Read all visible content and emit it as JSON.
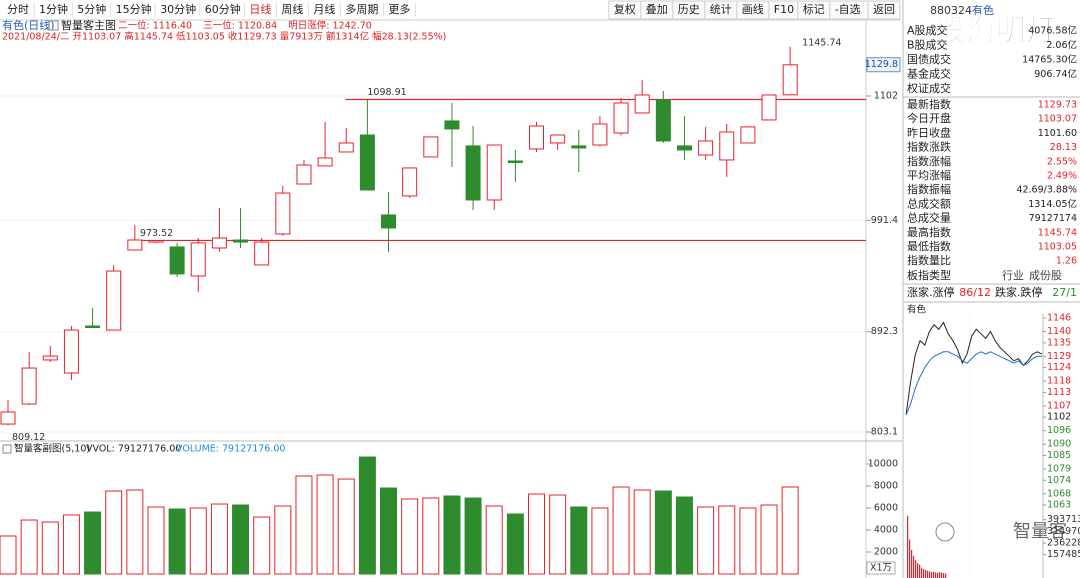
{
  "toolbar": {
    "periods": [
      "分时",
      "1分钟",
      "5分钟",
      "15分钟",
      "30分钟",
      "60分钟",
      "日线",
      "周线",
      "月线",
      "多周期",
      "更多"
    ],
    "tools": [
      "复权",
      "叠加",
      "历史",
      "统计",
      "画线",
      "F10",
      "标记",
      "-自选",
      "返回"
    ]
  },
  "header": {
    "title": "有色(日线)",
    "indicator": "智量客主图",
    "levels": [
      "二一位: 1116.40",
      "三一位: 1120.84",
      "明日涨停: 1242.70"
    ],
    "quote": "2021/08/24/二 开1103.07 高1145.74 低1103.05 收1129.73 量7913万 额1314亿 幅28.13(2.55%)"
  },
  "panel": {
    "code": "880324",
    "name": "有色",
    "watermark": "股海明灯",
    "rows": [
      [
        "A股成交",
        "4076.58亿"
      ],
      [
        "B股成交",
        "2.06亿"
      ],
      [
        "国债成交",
        "14765.30亿"
      ],
      [
        "基金成交",
        "906.74亿"
      ],
      [
        "权证成交",
        null
      ]
    ],
    "stats": [
      [
        "最新指数",
        "1129.73"
      ],
      [
        "今日开盘",
        "1103.07"
      ],
      [
        "昨日收盘",
        "1101.60"
      ],
      [
        "指数涨跌",
        "28.13"
      ],
      [
        "指数涨幅",
        "2.55%"
      ],
      [
        "平均涨幅",
        "2.49%"
      ],
      [
        "指数振幅",
        "42.69/3.88%"
      ],
      [
        "总成交额",
        "1314.05亿"
      ],
      [
        "总成交量",
        "79127174"
      ],
      [
        "最高指数",
        "1145.74"
      ],
      [
        "最低指数",
        "1103.05"
      ],
      [
        "指数量比",
        "1.26"
      ]
    ],
    "type_row": [
      "板指类型",
      "行业",
      "成份股"
    ],
    "breadth": [
      "涨家.涨停",
      "86/12",
      "跌家.跌停",
      "27/1"
    ],
    "brand": "智量客"
  },
  "chart_data": [
    {
      "type": "candlestick",
      "open": [
        810.2,
        828.0,
        867.2,
        855.6,
        897.4,
        893.8,
        965.0,
        973.0,
        967.7,
        941.9,
        966.8,
        973.9,
        951.7,
        979.3,
        1023.7,
        1039.8,
        1052.2,
        1067.3,
        996.2,
        1013.1,
        1047.8,
        1079.8,
        1057.6,
        1009.5,
        1044.2,
        1054.9,
        1060.2,
        1057.6,
        1058.4,
        1069.1,
        1086.9,
        1098.5,
        1057.6,
        1049.5,
        1045.1,
        1060.2,
        1080.7,
        1103.07
      ],
      "high": [
        831.6,
        874.3,
        879.6,
        897.4,
        913.4,
        951.7,
        987.3,
        973.52,
        971.3,
        975.7,
        1002.4,
        1002.4,
        975.7,
        1022.0,
        1045.1,
        1078.9,
        1073.6,
        1098.91,
        1016.6,
        1038.0,
        1065.6,
        1095.8,
        1075.3,
        1058.4,
        1054.0,
        1078.9,
        1067.3,
        1071.8,
        1084.2,
        1100.3,
        1116.3,
        1106.5,
        1084.2,
        1074.5,
        1077.1,
        1074.5,
        1102.9,
        1145.74
      ],
      "low": [
        809.12,
        827.0,
        865.4,
        849.4,
        895.8,
        893.8,
        965.0,
        971.3,
        941.0,
        927.7,
        963.2,
        966.8,
        951.7,
        977.5,
        1023.7,
        1039.8,
        1052.2,
        1018.4,
        963.2,
        1011.3,
        1047.8,
        1038.9,
        1000.6,
        1000.6,
        1025.5,
        1052.2,
        1054.0,
        1034.4,
        1057.0,
        1067.0,
        1086.9,
        1060.2,
        1045.1,
        1045.1,
        1030.0,
        1060.2,
        1080.7,
        1103.05
      ],
      "close": [
        820.9,
        860.0,
        870.7,
        893.8,
        896.5,
        946.3,
        973.9,
        973.4,
        943.7,
        971.3,
        975.7,
        972.1,
        972.1,
        1015.7,
        1040.6,
        1046.9,
        1060.2,
        1018.4,
        984.6,
        1038.0,
        1065.6,
        1072.7,
        1009.5,
        1058.4,
        1043.3,
        1075.3,
        1067.3,
        1055.8,
        1077.1,
        1095.8,
        1102.9,
        1062.0,
        1054.0,
        1062.0,
        1070.0,
        1074.5,
        1102.9,
        1129.73
      ],
      "ylim": [
        796,
        1169.6
      ],
      "yticks": [
        803.1,
        892.3,
        991.4,
        1102
      ],
      "current": 1129.8,
      "up_color": "#e8212a",
      "down_color": "#2e8b2e"
    },
    {
      "type": "bar",
      "title": "智量客副图(5,10)",
      "legend": [
        "VVOL: 79127176.00",
        "VOLUME: 79127176.00"
      ],
      "values": [
        3455,
        4909,
        4727,
        5364,
        5636,
        7545,
        7636,
        6091,
        5909,
        6000,
        6364,
        6273,
        5182,
        6182,
        8909,
        9000,
        8636,
        10636,
        7818,
        6818,
        6909,
        7091,
        6909,
        6182,
        5455,
        7273,
        7182,
        6091,
        6000,
        7909,
        7636,
        7545,
        7000,
        6091,
        6182,
        6000,
        6273,
        7913
      ],
      "ylim": [
        0,
        11730
      ],
      "yticks": [
        2000,
        4000,
        6000,
        8000,
        10000
      ],
      "unit": "X1万"
    },
    {
      "type": "line",
      "title": "有色",
      "series": [
        {
          "color": "#222222",
          "values": [
            1103,
            1118,
            1130,
            1136,
            1134,
            1140,
            1143,
            1141,
            1144,
            1139,
            1136,
            1132,
            1126,
            1130,
            1138,
            1141,
            1139,
            1137,
            1140,
            1136,
            1133,
            1131,
            1129,
            1127,
            1128,
            1125,
            1127,
            1130,
            1131,
            1130
          ]
        },
        {
          "color": "#1f6fd6",
          "values": [
            1103,
            1108,
            1115,
            1120,
            1124,
            1127,
            1129,
            1130,
            1131,
            1131,
            1130,
            1129,
            1127,
            1126,
            1128,
            1130,
            1131,
            1130,
            1131,
            1130,
            1129,
            1128,
            1127,
            1126,
            1127,
            1125,
            1126,
            1128,
            1129,
            1129
          ]
        }
      ],
      "ylim": [
        1061.7,
        1146.9
      ],
      "yticks": [
        1146,
        1140,
        1135,
        1129,
        1124,
        1118,
        1113,
        1107,
        1102,
        1096,
        1090,
        1085,
        1079,
        1074,
        1068,
        1063
      ],
      "volume": [
        420000,
        260000,
        190000,
        150000,
        120000,
        100000,
        90000,
        70000,
        60000,
        55000,
        50000,
        45000,
        40000,
        42000,
        38000,
        35000,
        40000,
        36000,
        33000,
        30000
      ],
      "vlim": [
        0,
        472455
      ],
      "vticks": [
        157485,
        236228,
        314970,
        393713
      ]
    }
  ]
}
